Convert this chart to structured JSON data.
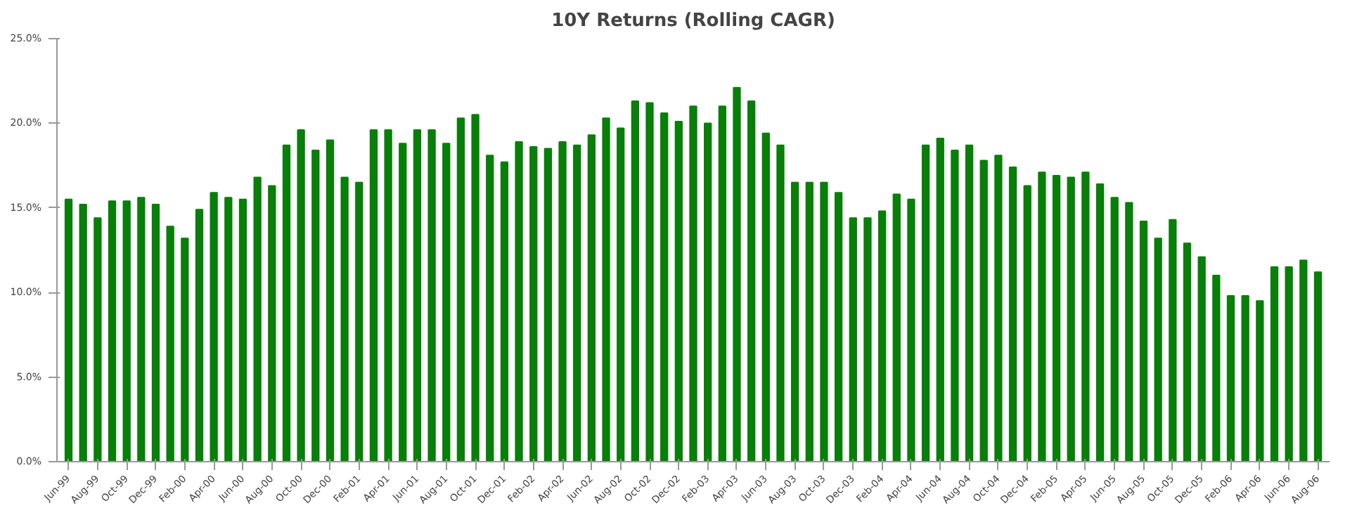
{
  "chart_data": {
    "type": "bar",
    "title": "10Y Returns (Rolling CAGR)",
    "categories": [
      "Jun-99",
      null,
      "Aug-99",
      null,
      "Oct-99",
      null,
      "Dec-99",
      null,
      "Feb-00",
      null,
      "Apr-00",
      null,
      "Jun-00",
      null,
      "Aug-00",
      null,
      "Oct-00",
      null,
      "Dec-00",
      null,
      "Feb-01",
      null,
      "Apr-01",
      null,
      "Jun-01",
      null,
      "Aug-01",
      null,
      "Oct-01",
      null,
      "Dec-01",
      null,
      "Feb-02",
      null,
      "Apr-02",
      null,
      "Jun-02",
      null,
      "Aug-02",
      null,
      "Oct-02",
      null,
      "Dec-02",
      null,
      "Feb-03",
      null,
      "Apr-03",
      null,
      "Jun-03",
      null,
      "Aug-03",
      null,
      "Oct-03",
      null,
      "Dec-03",
      null,
      "Feb-04",
      null,
      "Apr-04",
      null,
      "Jun-04",
      null,
      "Aug-04",
      null,
      "Oct-04",
      null,
      "Dec-04",
      null,
      "Feb-05",
      null,
      "Apr-05",
      null,
      "Jun-05",
      null,
      "Aug-05",
      null,
      "Oct-05",
      null,
      "Dec-05",
      null,
      "Feb-06",
      null,
      "Apr-06",
      null,
      "Jun-06",
      null,
      "Aug-06"
    ],
    "values": [
      15.5,
      15.2,
      14.4,
      15.4,
      15.4,
      15.6,
      15.2,
      13.9,
      13.2,
      14.9,
      15.9,
      15.6,
      15.5,
      16.8,
      16.3,
      18.7,
      19.6,
      18.4,
      19.0,
      16.8,
      16.5,
      19.6,
      19.6,
      18.8,
      19.6,
      19.6,
      18.8,
      20.3,
      20.5,
      18.1,
      17.7,
      18.9,
      18.6,
      18.5,
      18.9,
      18.7,
      19.3,
      20.3,
      19.7,
      21.3,
      21.2,
      20.6,
      20.1,
      21.0,
      20.0,
      21.0,
      22.1,
      21.3,
      19.4,
      18.7,
      16.5,
      16.5,
      16.5,
      15.9,
      14.4,
      14.4,
      14.8,
      15.8,
      15.5,
      18.7,
      19.1,
      18.4,
      18.7,
      17.8,
      18.1,
      17.4,
      16.3,
      17.1,
      16.9,
      16.8,
      17.1,
      16.4,
      15.6,
      15.3,
      14.2,
      13.2,
      14.3,
      12.9,
      12.1,
      11.0,
      9.8,
      9.8,
      9.5,
      11.5,
      11.5,
      11.9,
      11.2
    ],
    "color": "#087f08",
    "ylim": [
      0,
      25
    ],
    "yticks": [
      {
        "value": 0,
        "label": "0.0%"
      },
      {
        "value": 5,
        "label": "5.0%"
      },
      {
        "value": 10,
        "label": "10.0%"
      },
      {
        "value": 15,
        "label": "15.0%"
      },
      {
        "value": 20,
        "label": "20.0%"
      },
      {
        "value": 25,
        "label": "25.0%"
      }
    ],
    "grid": false
  }
}
